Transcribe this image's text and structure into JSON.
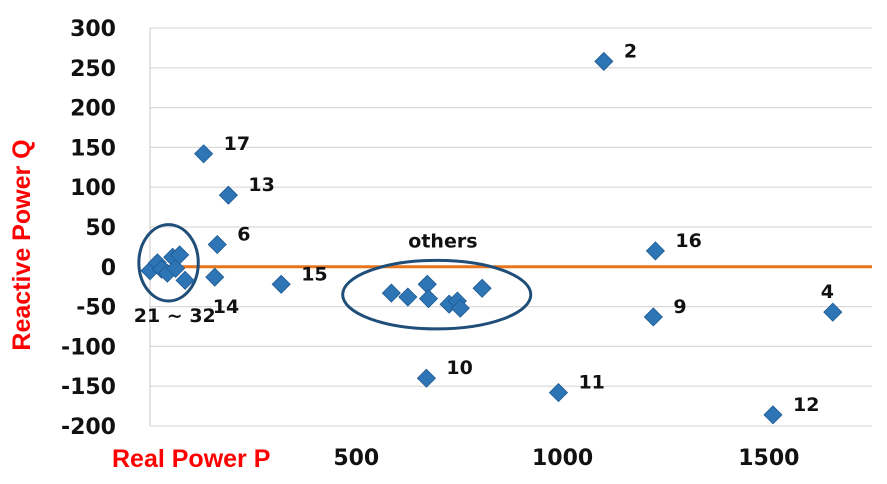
{
  "chart_data": {
    "type": "scatter",
    "xlabel": "Real Power P",
    "ylabel": "Reactive Power Q",
    "xlim": [
      0,
      1750
    ],
    "ylim": [
      -200,
      300
    ],
    "x_ticks": [
      "500",
      "1000",
      "1500"
    ],
    "x_tick_values": [
      500,
      1000,
      1500
    ],
    "y_ticks": [
      "300",
      "250",
      "200",
      "150",
      "100",
      "50",
      "0",
      "-50",
      "-100",
      "-150",
      "-200"
    ],
    "y_tick_values": [
      300,
      250,
      200,
      150,
      100,
      50,
      0,
      -50,
      -100,
      -150,
      -200
    ],
    "grid": "horizontal",
    "marker_color": "#2E75B6",
    "zero_line_color": "#E8741C",
    "axis_title_color": "#FF0000",
    "ellipse_color": "#1F4E79",
    "points": [
      {
        "x": 1100,
        "y": 258,
        "label": "2"
      },
      {
        "x": 1655,
        "y": -57,
        "label": "4"
      },
      {
        "x": 163,
        "y": 28,
        "label": "6"
      },
      {
        "x": 1220,
        "y": -63,
        "label": "9"
      },
      {
        "x": 670,
        "y": -140,
        "label": "10"
      },
      {
        "x": 990,
        "y": -158,
        "label": "11"
      },
      {
        "x": 1510,
        "y": -186,
        "label": "12"
      },
      {
        "x": 190,
        "y": 90,
        "label": "13"
      },
      {
        "x": 157,
        "y": -13,
        "label": "14"
      },
      {
        "x": 318,
        "y": -22,
        "label": "15"
      },
      {
        "x": 1225,
        "y": 20,
        "label": "16"
      },
      {
        "x": 130,
        "y": 142,
        "label": "17"
      },
      {
        "x": 0,
        "y": -5,
        "label": ""
      },
      {
        "x": 18,
        "y": 5,
        "label": ""
      },
      {
        "x": 28,
        "y": -3,
        "label": ""
      },
      {
        "x": 42,
        "y": -8,
        "label": ""
      },
      {
        "x": 55,
        "y": 12,
        "label": ""
      },
      {
        "x": 62,
        "y": -2,
        "label": ""
      },
      {
        "x": 72,
        "y": 15,
        "label": ""
      },
      {
        "x": 85,
        "y": -17,
        "label": ""
      },
      {
        "x": 585,
        "y": -33,
        "label": ""
      },
      {
        "x": 625,
        "y": -38,
        "label": ""
      },
      {
        "x": 672,
        "y": -22,
        "label": ""
      },
      {
        "x": 675,
        "y": -40,
        "label": ""
      },
      {
        "x": 725,
        "y": -47,
        "label": ""
      },
      {
        "x": 745,
        "y": -43,
        "label": ""
      },
      {
        "x": 752,
        "y": -52,
        "label": ""
      },
      {
        "x": 805,
        "y": -27,
        "label": ""
      }
    ],
    "annotations": [
      {
        "text": "21 ~ 32",
        "x": 60,
        "y": -62
      },
      {
        "text": "others",
        "x": 710,
        "y": 32
      }
    ],
    "groups": [
      {
        "name": "21 ~ 32",
        "cx": 45,
        "cy": 5,
        "rx": 72,
        "ry": 48
      },
      {
        "name": "others",
        "cx": 695,
        "cy": -35,
        "rx": 228,
        "ry": 43
      }
    ]
  }
}
